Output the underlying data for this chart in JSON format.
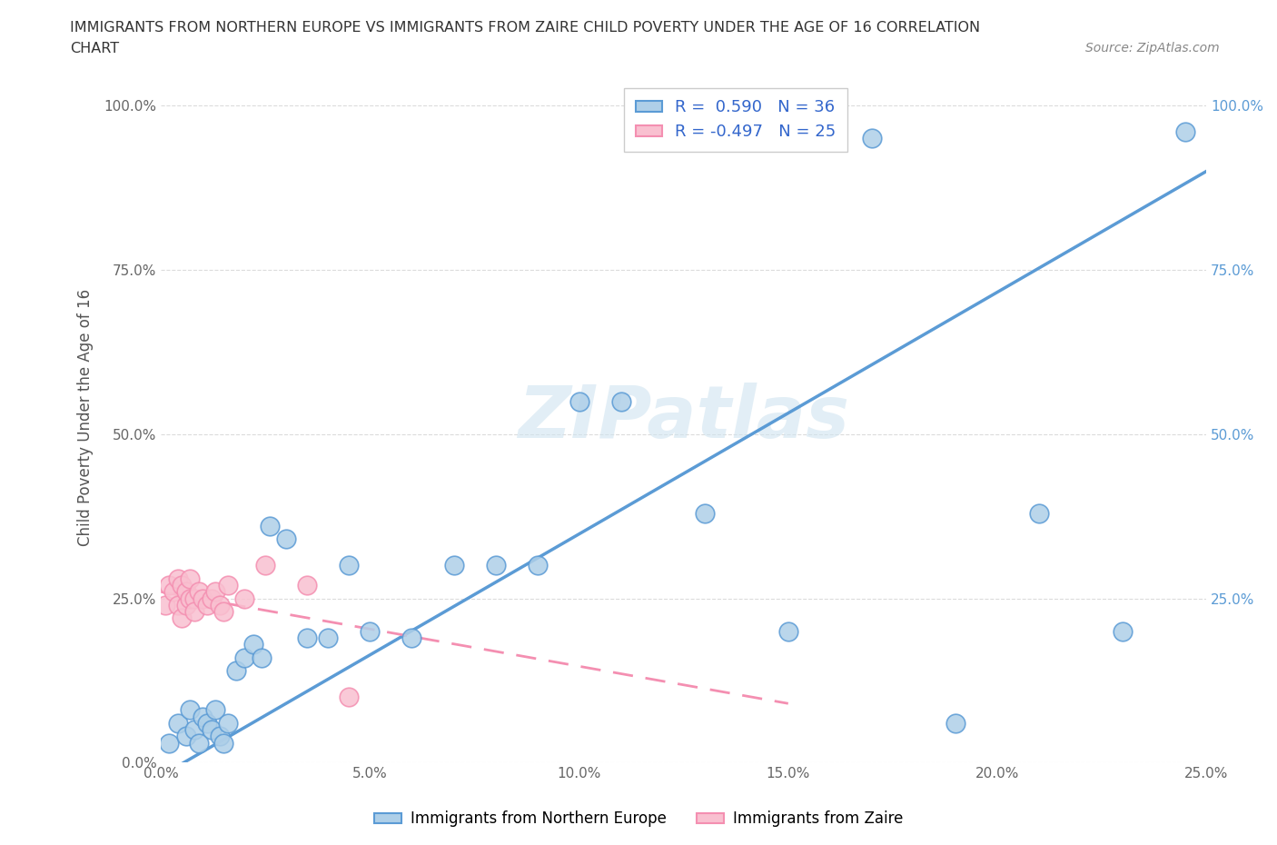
{
  "title_line1": "IMMIGRANTS FROM NORTHERN EUROPE VS IMMIGRANTS FROM ZAIRE CHILD POVERTY UNDER THE AGE OF 16 CORRELATION",
  "title_line2": "CHART",
  "source_text": "Source: ZipAtlas.com",
  "ylabel": "Child Poverty Under the Age of 16",
  "r1": 0.59,
  "r2": -0.497,
  "n1": 36,
  "n2": 25,
  "xlim": [
    0.0,
    0.25
  ],
  "ylim": [
    0.0,
    1.05
  ],
  "yticks": [
    0.0,
    0.25,
    0.5,
    0.75,
    1.0
  ],
  "ytick_labels_left": [
    "0.0%",
    "25.0%",
    "50.0%",
    "75.0%",
    "100.0%"
  ],
  "ytick_labels_right": [
    "",
    "25.0%",
    "50.0%",
    "75.0%",
    "100.0%"
  ],
  "xticks": [
    0.0,
    0.05,
    0.1,
    0.15,
    0.2,
    0.25
  ],
  "xtick_labels": [
    "0.0%",
    "5.0%",
    "10.0%",
    "15.0%",
    "20.0%",
    "25.0%"
  ],
  "blue_color": "#5b9bd5",
  "pink_color": "#f48fb1",
  "blue_fill": "#aecfe8",
  "pink_fill": "#f9c0d0",
  "watermark_text": "ZIPatlas",
  "blue_line_x0": 0.0,
  "blue_line_y0": -0.02,
  "blue_line_x1": 0.25,
  "blue_line_y1": 0.9,
  "pink_line_x0": 0.0,
  "pink_line_y0": 0.26,
  "pink_line_x1": 0.15,
  "pink_line_y1": 0.09,
  "blue_scatter_x": [
    0.002,
    0.004,
    0.006,
    0.007,
    0.008,
    0.009,
    0.01,
    0.011,
    0.012,
    0.013,
    0.014,
    0.015,
    0.016,
    0.018,
    0.02,
    0.022,
    0.024,
    0.026,
    0.03,
    0.035,
    0.04,
    0.045,
    0.05,
    0.06,
    0.07,
    0.08,
    0.09,
    0.1,
    0.11,
    0.13,
    0.15,
    0.17,
    0.19,
    0.21,
    0.23,
    0.245
  ],
  "blue_scatter_y": [
    0.03,
    0.06,
    0.04,
    0.08,
    0.05,
    0.03,
    0.07,
    0.06,
    0.05,
    0.08,
    0.04,
    0.03,
    0.06,
    0.14,
    0.16,
    0.18,
    0.16,
    0.36,
    0.34,
    0.19,
    0.19,
    0.3,
    0.2,
    0.19,
    0.3,
    0.3,
    0.3,
    0.55,
    0.55,
    0.38,
    0.2,
    0.95,
    0.06,
    0.38,
    0.2,
    0.96
  ],
  "pink_scatter_x": [
    0.001,
    0.002,
    0.003,
    0.004,
    0.004,
    0.005,
    0.005,
    0.006,
    0.006,
    0.007,
    0.007,
    0.008,
    0.008,
    0.009,
    0.01,
    0.011,
    0.012,
    0.013,
    0.014,
    0.015,
    0.016,
    0.02,
    0.025,
    0.035,
    0.045
  ],
  "pink_scatter_y": [
    0.24,
    0.27,
    0.26,
    0.24,
    0.28,
    0.22,
    0.27,
    0.24,
    0.26,
    0.25,
    0.28,
    0.25,
    0.23,
    0.26,
    0.25,
    0.24,
    0.25,
    0.26,
    0.24,
    0.23,
    0.27,
    0.25,
    0.3,
    0.27,
    0.1
  ]
}
